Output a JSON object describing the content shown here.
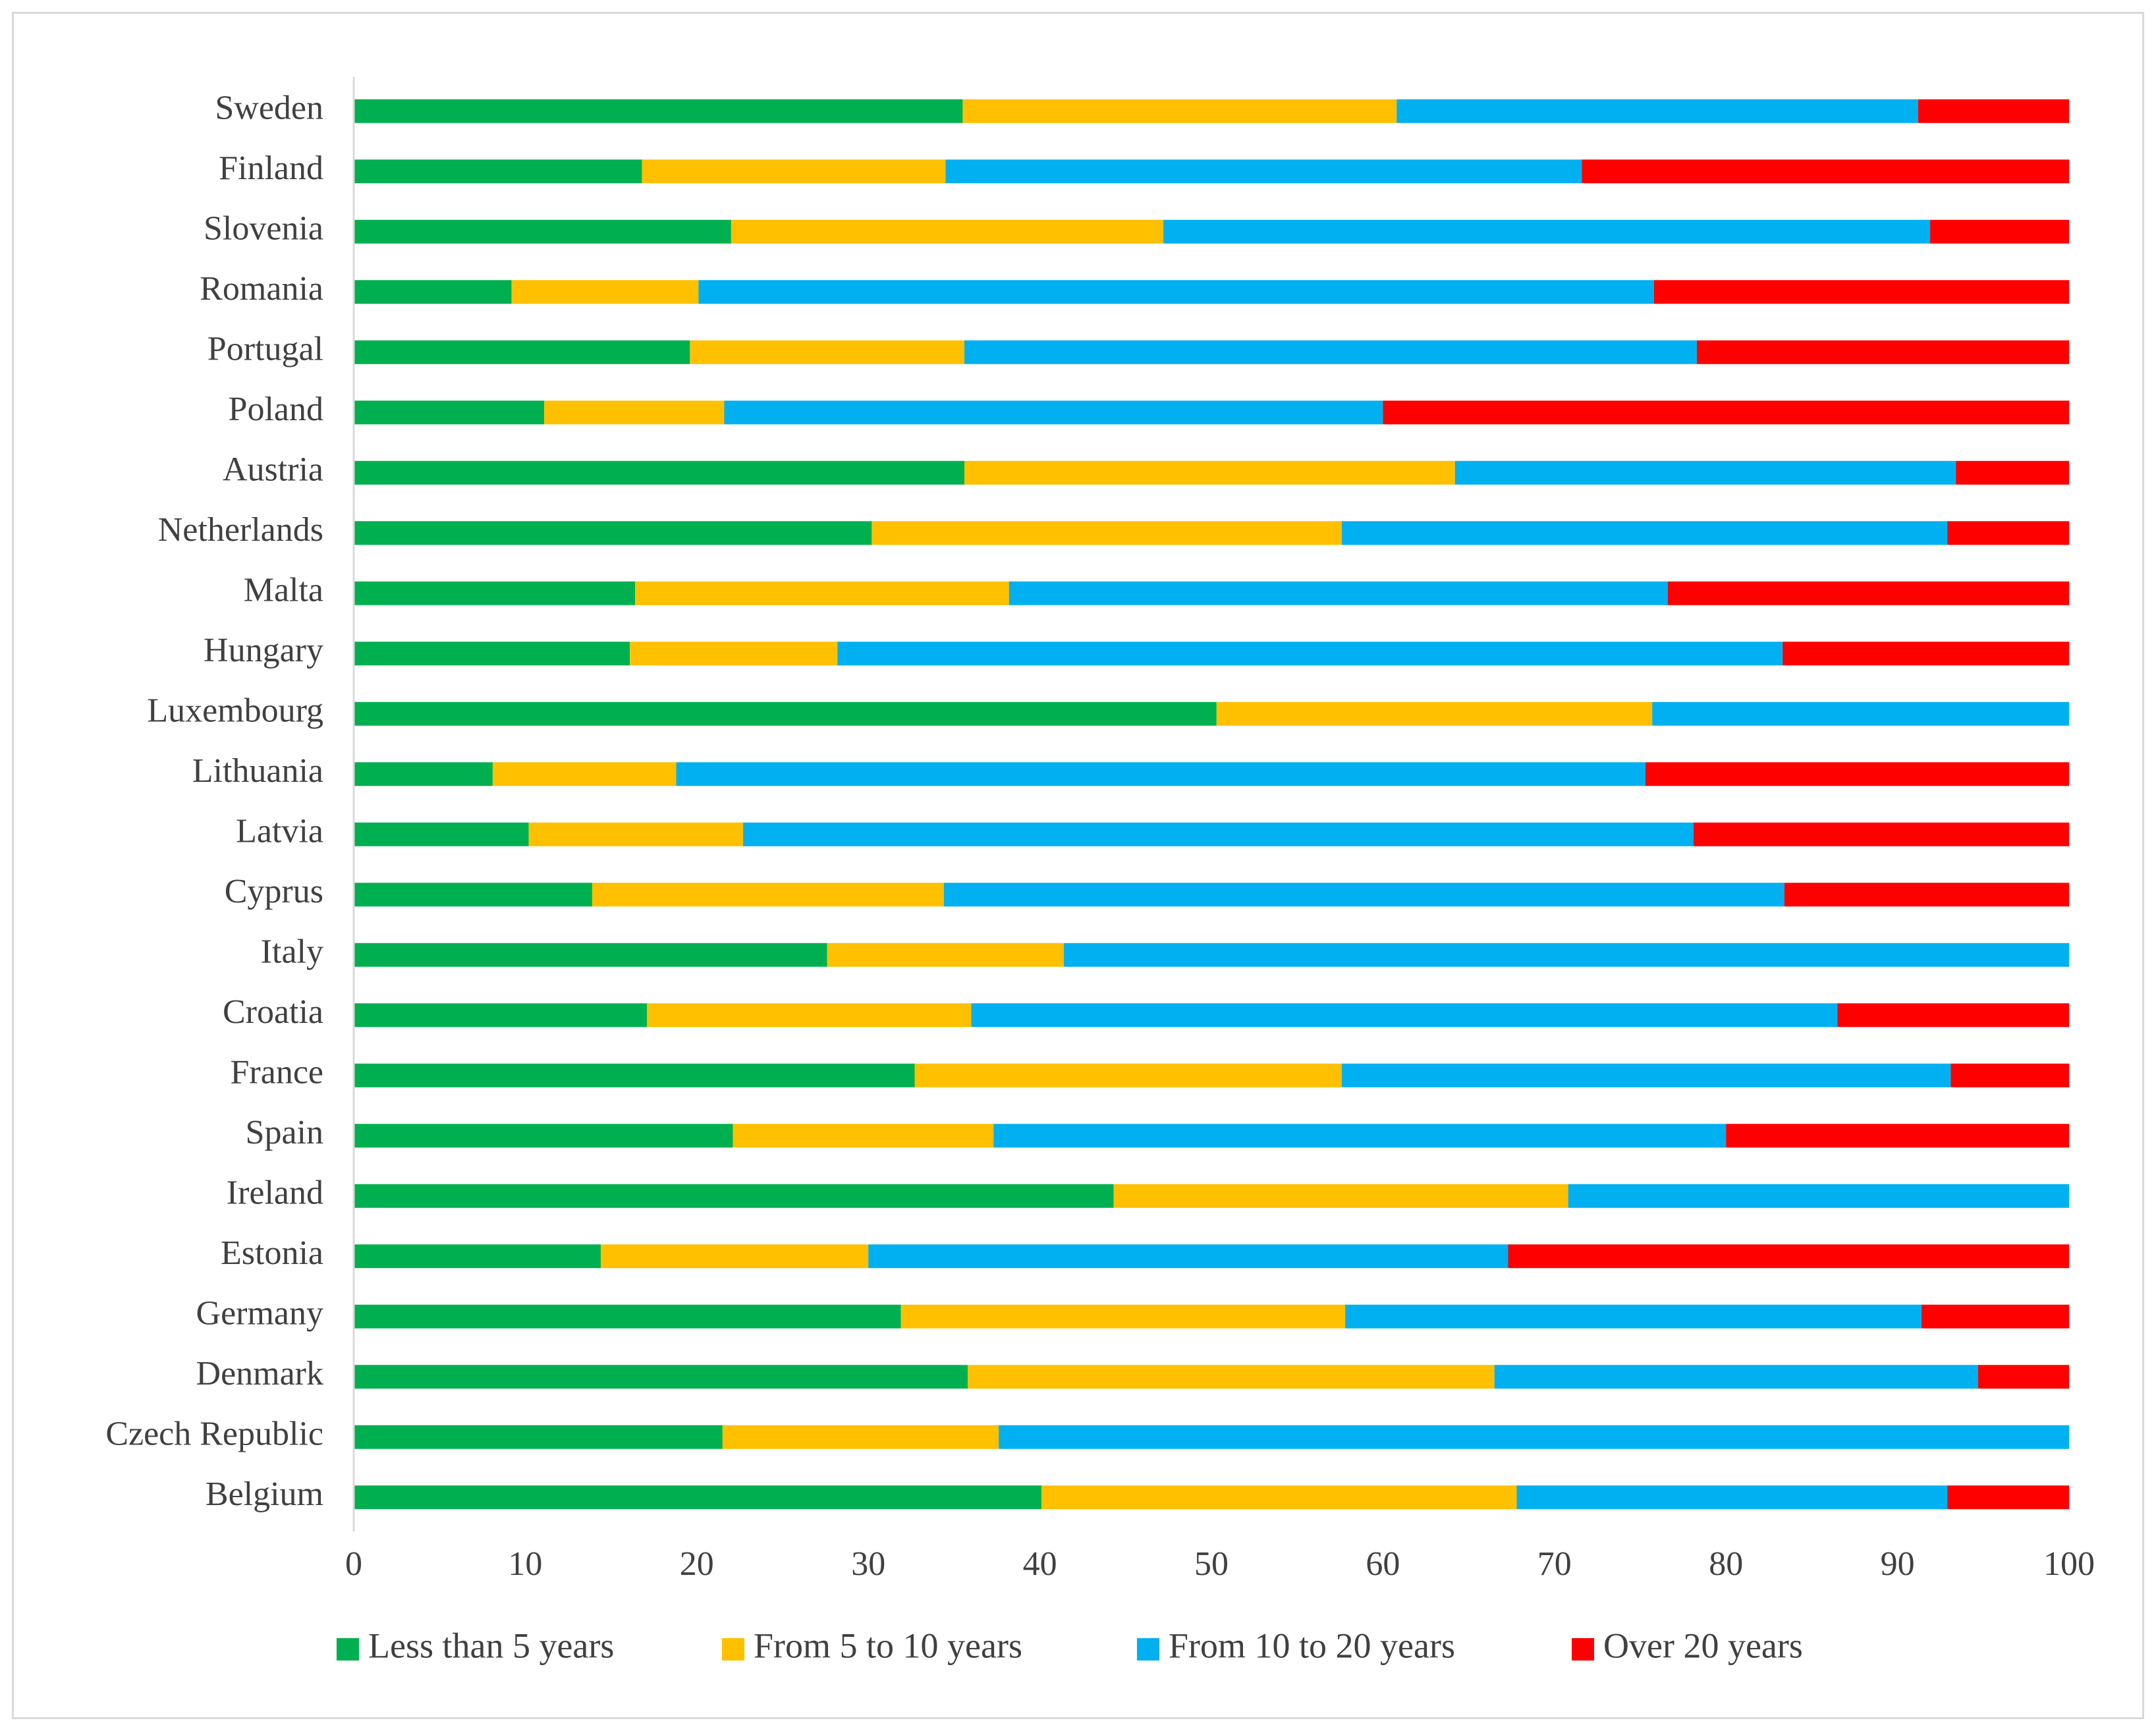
{
  "chart_data": {
    "type": "bar",
    "orientation": "horizontal",
    "stacked": true,
    "title": "",
    "xlabel": "",
    "ylabel": "",
    "xlim": [
      0,
      100
    ],
    "x_ticks": [
      0,
      10,
      20,
      30,
      40,
      50,
      60,
      70,
      80,
      90,
      100
    ],
    "grid": false,
    "legend_position": "bottom",
    "categories": [
      "Sweden",
      "Finland",
      "Slovenia",
      "Romania",
      "Portugal",
      "Poland",
      "Austria",
      "Netherlands",
      "Malta",
      "Hungary",
      "Luxembourg",
      "Lithuania",
      "Latvia",
      "Cyprus",
      "Italy",
      "Croatia",
      "France",
      "Spain",
      "Ireland",
      "Estonia",
      "Germany",
      "Denmark",
      "Czech Republic",
      "Belgium"
    ],
    "series": [
      {
        "name": "Less than 5 years",
        "color": "#00b050",
        "values": [
          35.5,
          16.8,
          22.0,
          9.2,
          19.6,
          11.1,
          35.6,
          30.2,
          16.4,
          16.1,
          50.3,
          8.1,
          10.2,
          13.9,
          27.6,
          17.1,
          32.7,
          22.1,
          44.3,
          14.4,
          31.9,
          35.8,
          21.5,
          40.1
        ]
      },
      {
        "name": "From 5 to 10 years",
        "color": "#ffc000",
        "values": [
          25.3,
          17.7,
          25.2,
          10.9,
          16.0,
          10.5,
          28.6,
          27.4,
          21.8,
          12.1,
          25.4,
          10.7,
          12.5,
          20.5,
          13.8,
          18.9,
          24.9,
          15.2,
          26.5,
          15.6,
          25.9,
          30.7,
          16.1,
          27.7
        ]
      },
      {
        "name": "From 10 to 20 years",
        "color": "#00b0f0",
        "values": [
          30.4,
          37.1,
          44.7,
          55.7,
          42.7,
          38.4,
          29.2,
          35.3,
          38.4,
          55.1,
          24.3,
          56.5,
          55.4,
          49.0,
          58.6,
          50.5,
          35.5,
          42.7,
          29.2,
          37.3,
          33.6,
          28.2,
          62.4,
          25.1
        ]
      },
      {
        "name": "Over 20 years",
        "color": "#ff0000",
        "values": [
          8.8,
          28.4,
          8.1,
          24.2,
          21.7,
          40.0,
          6.6,
          7.1,
          23.4,
          16.7,
          0.0,
          24.7,
          21.9,
          16.6,
          0.0,
          13.5,
          6.9,
          20.0,
          0.0,
          32.7,
          8.6,
          5.3,
          0.0,
          7.1
        ]
      }
    ]
  }
}
